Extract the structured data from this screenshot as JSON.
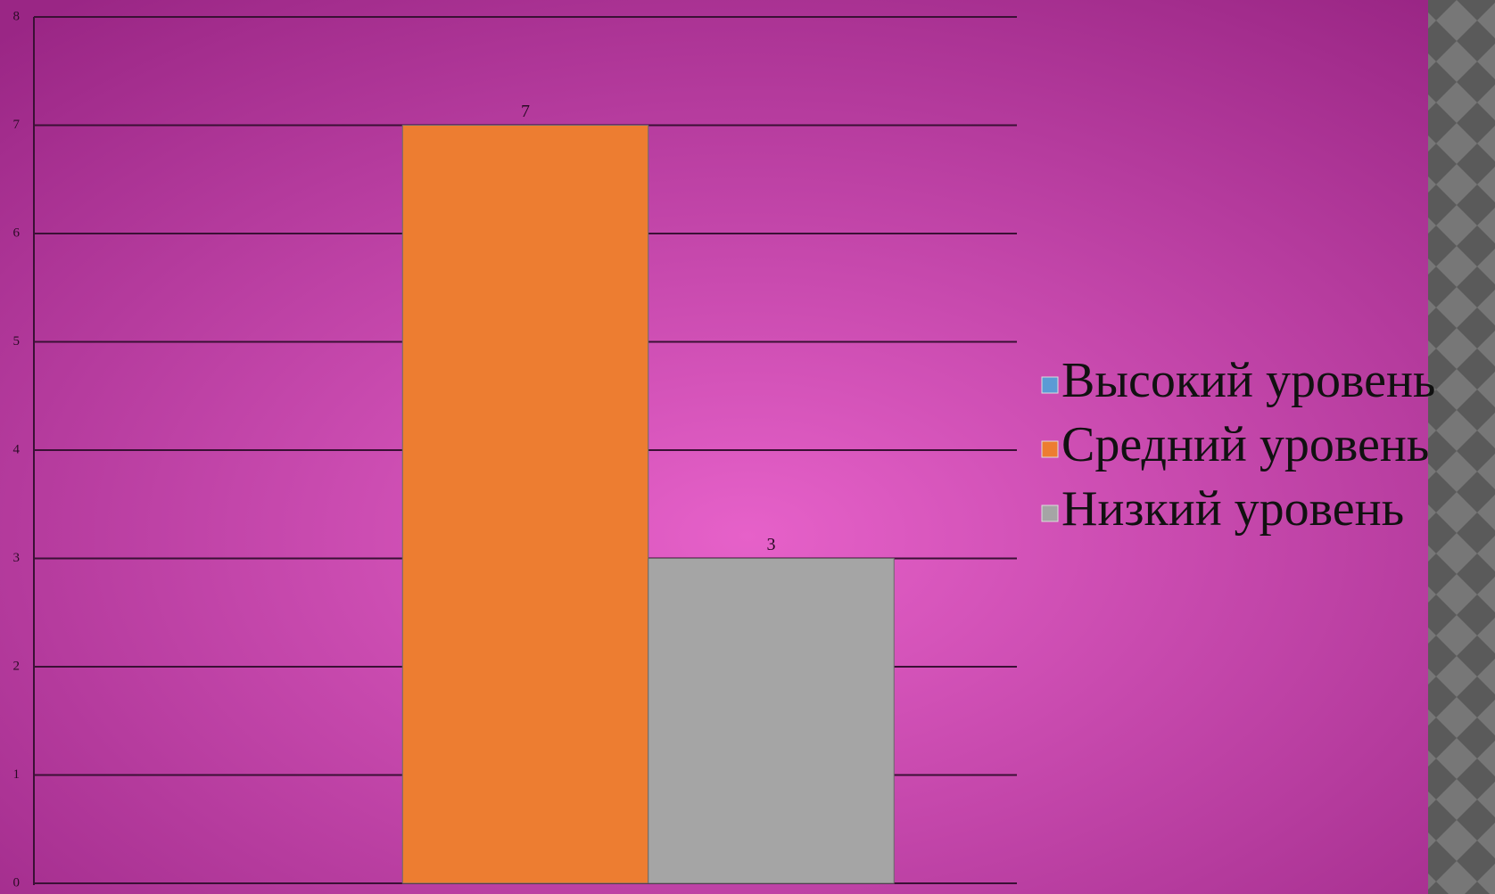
{
  "chart_data": {
    "type": "bar",
    "categories": [
      null
    ],
    "series": [
      {
        "name": "Высокий уровень",
        "color": "#5b9bd5",
        "values": [
          null
        ]
      },
      {
        "name": "Средний уровень",
        "color": "#ed7d31",
        "values": [
          7
        ]
      },
      {
        "name": "Низкий уровень",
        "color": "#a5a5a5",
        "values": [
          3
        ]
      }
    ],
    "ylim": [
      0,
      8
    ],
    "yticks": [
      0,
      1,
      2,
      3,
      4,
      5,
      6,
      7,
      8
    ],
    "grid": true,
    "legend": "right"
  }
}
